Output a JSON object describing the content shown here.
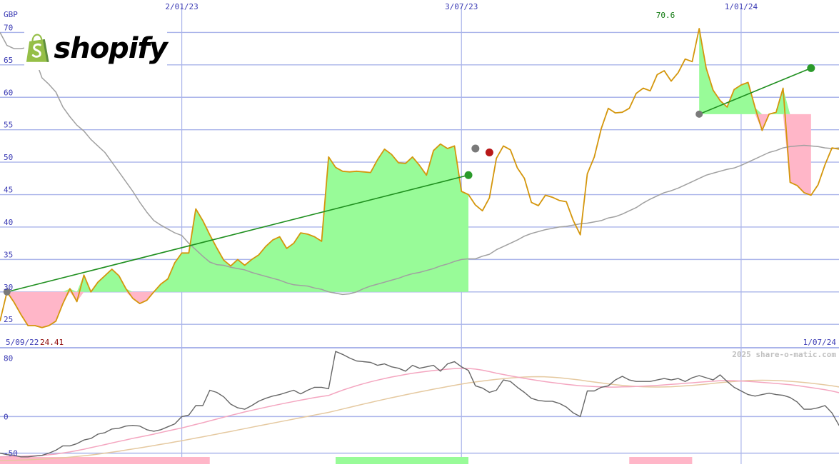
{
  "brand": {
    "wordmark": "shopify"
  },
  "price_panel": {
    "currency": "GBP",
    "start_date": "5/09/22",
    "start_value": "24.41",
    "end_date": "1/07/24",
    "peak_value": "70.6"
  },
  "oscillator_panel": {
    "credit": "2025 share-o-matic.com"
  },
  "colors": {
    "price": "#d4960c",
    "moving_average": "#a0a0a0",
    "gain_fill": "#98fb98",
    "loss_fill": "#ffb6c8",
    "trend_line": "#1f8f1f",
    "grid": "#aab4ea",
    "axis_label": "#3a3ab4",
    "peak_label": "#127a12",
    "start_value_label": "#8b0000",
    "oscillator_line": "#666666",
    "signal_pink": "#f4a6c0",
    "signal_tan": "#e5c9a0"
  },
  "chart_data": [
    {
      "type": "line",
      "title": "",
      "ylabel": "GBP",
      "ylim": [
        21.5,
        75
      ],
      "yticks": [
        25,
        30,
        35,
        40,
        45,
        50,
        55,
        60,
        65,
        70
      ],
      "x_tick_labels": [
        "2/01/23",
        "3/07/23",
        "1/01/24"
      ],
      "x_tick_index": [
        26,
        66,
        106
      ],
      "grid": true,
      "series": [
        {
          "role": "price",
          "values": [
            25.5,
            30,
            28.4,
            26.5,
            24.8,
            24.8,
            24.5,
            24.8,
            25.5,
            28.2,
            30.5,
            28.5,
            32.6,
            30,
            31.5,
            32.5,
            33.5,
            32.5,
            30.5,
            29,
            28.2,
            28.7,
            30,
            31.2,
            32,
            34.5,
            36,
            36,
            42.8,
            41,
            38.8,
            36.8,
            34.9,
            34,
            35,
            34.1,
            35,
            35.7,
            37,
            38,
            38.5,
            36.7,
            37.5,
            39.1,
            38.9,
            38.5,
            37.8,
            50.8,
            49.2,
            48.6,
            48.5,
            48.6,
            48.5,
            48.4,
            50.4,
            52,
            51.2,
            49.9,
            49.8,
            50.8,
            49.5,
            48,
            51.8,
            52.8,
            52.1,
            52.5,
            45.5,
            45,
            43.4,
            42.5,
            44.5,
            50.6,
            52.5,
            51.9,
            49.1,
            47.5,
            43.8,
            43.3,
            44.9,
            44.6,
            44.1,
            43.9,
            41,
            38.8,
            48.2,
            50.8,
            55.2,
            58.3,
            57.6,
            57.7,
            58.3,
            60.6,
            61.4,
            61,
            63.5,
            64.1,
            62.5,
            63.8,
            65.9,
            65.5,
            70.6,
            64.5,
            61.1,
            59.5,
            58.5,
            61.2,
            61.9,
            62.3,
            58.4,
            54.9,
            57.4,
            57.7,
            61.4,
            46.9,
            46.4,
            45.3,
            44.9,
            46.5,
            49.6,
            52.2,
            52
          ]
        },
        {
          "role": "moving_average",
          "values": [
            70,
            68,
            67.5,
            67.5,
            67.7,
            66,
            63,
            62,
            60.8,
            58.5,
            57,
            55.7,
            54.8,
            53.5,
            52.5,
            51.5,
            50,
            48.5,
            47,
            45.5,
            43.8,
            42.3,
            41,
            40.3,
            39.7,
            39.1,
            38.7,
            37.5,
            36.5,
            35.5,
            34.6,
            34.2,
            34.1,
            33.8,
            33.6,
            33.4,
            33,
            32.7,
            32.4,
            32.1,
            31.8,
            31.4,
            31.1,
            31,
            30.9,
            30.6,
            30.4,
            30,
            29.8,
            29.6,
            29.7,
            30,
            30.5,
            30.9,
            31.2,
            31.5,
            31.8,
            32.1,
            32.5,
            32.8,
            33,
            33.3,
            33.6,
            34,
            34.3,
            34.7,
            35,
            35.1,
            35.1,
            35.5,
            35.8,
            36.5,
            37,
            37.5,
            38,
            38.6,
            39,
            39.3,
            39.6,
            39.8,
            40,
            40.1,
            40.3,
            40.5,
            40.6,
            40.8,
            41,
            41.4,
            41.6,
            42,
            42.5,
            43,
            43.7,
            44.3,
            44.8,
            45.3,
            45.6,
            46,
            46.5,
            47,
            47.5,
            48,
            48.3,
            48.6,
            48.9,
            49.1,
            49.5,
            50,
            50.5,
            51,
            51.5,
            51.8,
            52.2,
            52.4,
            52.5,
            52.6,
            52.5,
            52.4,
            52.2,
            52.1,
            52.2,
            52,
            52.2,
            52.4
          ]
        }
      ],
      "trades": [
        {
          "entry_index": 1,
          "entry_value": 30,
          "exit_index": 67,
          "exit_value": 48
        },
        {
          "entry_index": 100,
          "entry_value": 57.4,
          "exit_index": 116,
          "exit_value": 64.5
        }
      ],
      "markers": [
        {
          "index": 68,
          "value": 52.1,
          "kind": "grey"
        },
        {
          "index": 70,
          "value": 51.5,
          "kind": "red"
        }
      ]
    },
    {
      "type": "line",
      "title": "",
      "ylim": [
        -65,
        95
      ],
      "yticks": [
        80,
        0,
        -50
      ],
      "grid": true,
      "series": [
        {
          "role": "oscillator",
          "values": [
            -50,
            -52,
            -53,
            -55,
            -55,
            -54,
            -53,
            -50,
            -46,
            -40,
            -40,
            -37,
            -32,
            -30,
            -24,
            -22,
            -17,
            -16,
            -13,
            -12,
            -13,
            -18,
            -20,
            -18,
            -14,
            -10,
            0,
            2,
            15,
            15,
            36,
            33,
            27,
            17,
            12,
            10,
            15,
            21,
            25,
            28,
            30,
            33,
            36,
            31,
            36,
            40,
            40,
            38,
            89,
            85,
            80,
            76,
            75,
            74,
            70,
            72,
            68,
            66,
            62,
            70,
            66,
            68,
            70,
            62,
            72,
            75,
            68,
            63,
            42,
            39,
            33,
            36,
            50,
            48,
            40,
            33,
            25,
            22,
            21,
            21,
            18,
            13,
            5,
            0,
            35,
            35,
            40,
            42,
            50,
            55,
            50,
            48,
            48,
            48,
            50,
            52,
            50,
            52,
            48,
            53,
            56,
            53,
            50,
            57,
            48,
            40,
            35,
            30,
            28,
            30,
            32,
            30,
            29,
            26,
            20,
            10,
            10,
            12,
            15,
            5,
            -12,
            -13,
            -15,
            -10,
            -2
          ]
        },
        {
          "role": "signal_pink",
          "values": [
            -55,
            -54.7,
            -54.5,
            -54.3,
            -53.8,
            -53.5,
            -53,
            -52.2,
            -51.2,
            -49.8,
            -48.3,
            -46.5,
            -44.6,
            -42.5,
            -40.4,
            -38.3,
            -36.1,
            -34,
            -31.9,
            -29.8,
            -27.9,
            -26,
            -24,
            -21.8,
            -19.6,
            -17.6,
            -15.5,
            -13.2,
            -10.8,
            -8.4,
            -5.9,
            -3.4,
            -0.9,
            1.6,
            3.9,
            6.3,
            8.5,
            10.6,
            12.8,
            14.8,
            16.8,
            18.7,
            20.6,
            22.4,
            24.2,
            25.9,
            27.4,
            28.9,
            32.6,
            36.1,
            39.2,
            42.2,
            45,
            47.5,
            49.8,
            52,
            54,
            55.8,
            57.5,
            59.1,
            60.5,
            61.7,
            62.9,
            63.9,
            64.8,
            65.5,
            65.9,
            65.7,
            64.9,
            63.4,
            61.4,
            59.3,
            57.4,
            55.6,
            53.9,
            52.2,
            50.6,
            49.1,
            47.7,
            46.4,
            45.2,
            44.1,
            43,
            42,
            41.5,
            41,
            40.6,
            40.3,
            40.3,
            40.6,
            40.8,
            41.1,
            41.5,
            42,
            42.6,
            43.3,
            44,
            44.7,
            45.4,
            46.1,
            46.9,
            47.7,
            48.3,
            49,
            49.2,
            49,
            48.6,
            48.1,
            47.4,
            46.7,
            46,
            45.2,
            44.4,
            43.5,
            42.4,
            41,
            39.6,
            38.2,
            36.7,
            34.9,
            32.7,
            30.4,
            28.1,
            25.6,
            23.3
          ]
        },
        {
          "role": "signal_tan",
          "values": [
            -60,
            -59.9,
            -59.7,
            -59.4,
            -59.1,
            -58.7,
            -58.2,
            -57.7,
            -57,
            -56.3,
            -55.5,
            -54.6,
            -53.6,
            -52.5,
            -51.3,
            -50,
            -48.7,
            -47.3,
            -45.8,
            -44.3,
            -42.8,
            -41.2,
            -39.6,
            -38,
            -36.4,
            -34.7,
            -33,
            -31.2,
            -29.4,
            -27.6,
            -25.8,
            -24,
            -22.1,
            -20.3,
            -18.4,
            -16.5,
            -14.6,
            -12.7,
            -10.9,
            -9,
            -7.1,
            -5.3,
            -3.4,
            -1.6,
            0.3,
            2.1,
            3.9,
            5.7,
            8,
            10.3,
            12.6,
            14.9,
            17.1,
            19.3,
            21.5,
            23.6,
            25.7,
            27.7,
            29.7,
            31.7,
            33.6,
            35.5,
            37.4,
            39.2,
            41,
            42.7,
            44.4,
            45.9,
            47.3,
            48.6,
            49.7,
            50.8,
            51.8,
            52.7,
            53.4,
            54,
            54.4,
            54.5,
            54.3,
            53.8,
            53,
            52.1,
            51,
            49.8,
            48.5,
            47.2,
            45.9,
            44.7,
            43.6,
            42.6,
            41.8,
            41.2,
            40.8,
            40.5,
            40.4,
            40.5,
            40.8,
            41.3,
            41.9,
            42.6,
            43.4,
            44.3,
            45.3,
            46.3,
            47.2,
            48,
            48.7,
            49.2,
            49.5,
            49.6,
            49.5,
            49.2,
            48.8,
            48.2,
            47.5,
            46.6,
            45.6,
            44.5,
            43.3,
            42,
            40.5,
            38.8,
            37,
            35.1,
            33
          ]
        }
      ],
      "volume_bars": [
        {
          "from_index": 0,
          "to_index": 30,
          "color": "loss"
        },
        {
          "from_index": 48,
          "to_index": 67,
          "color": "gain"
        },
        {
          "from_index": 90,
          "to_index": 99,
          "color": "loss"
        },
        {
          "from_index": 125,
          "to_index": 144,
          "color": "loss"
        }
      ]
    }
  ]
}
